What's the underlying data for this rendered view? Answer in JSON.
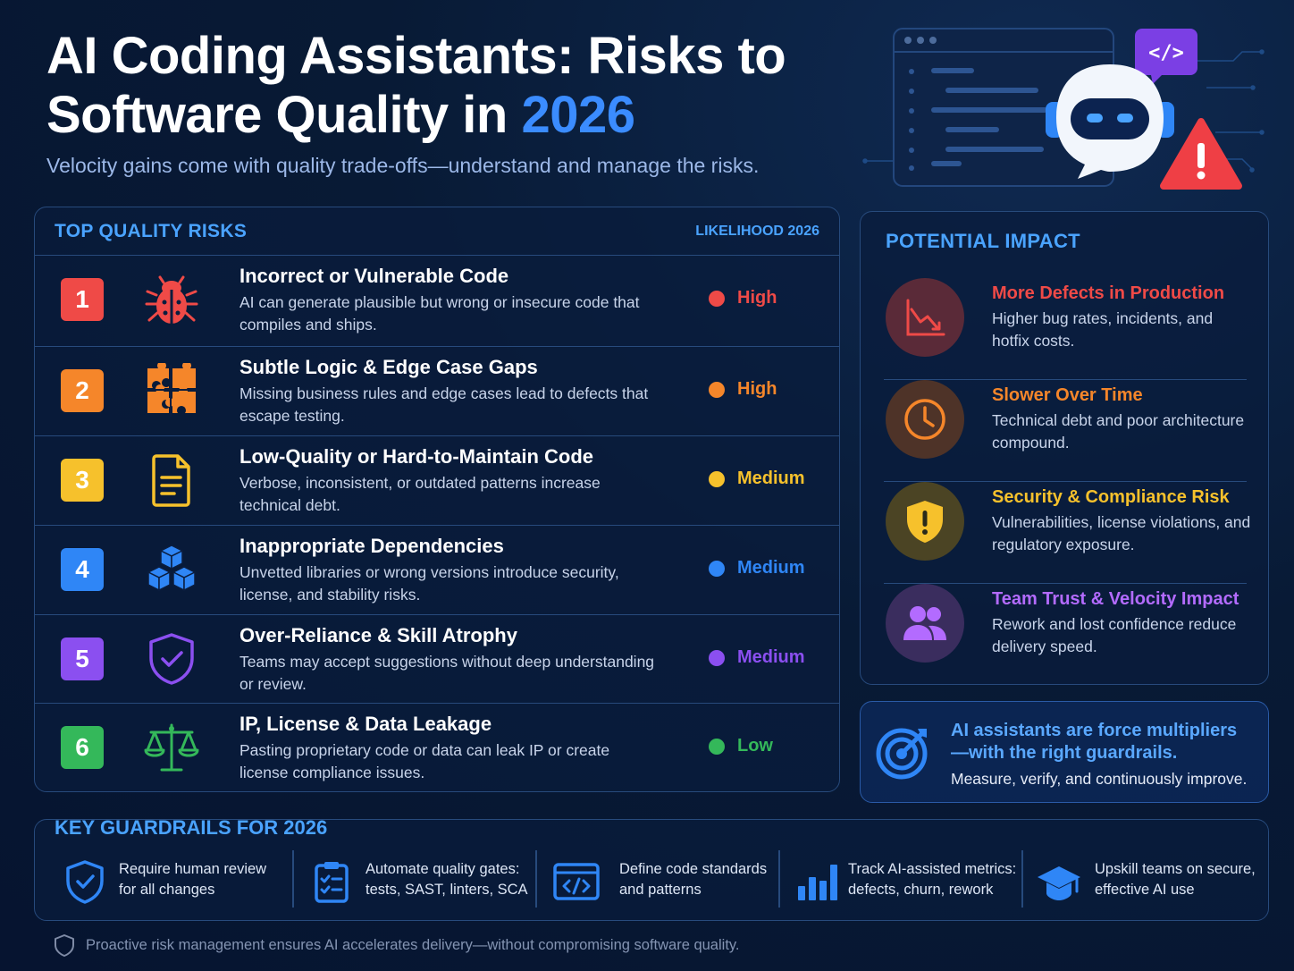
{
  "header": {
    "title_line1": "AI Coding Assistants: Risks to",
    "title_line2_prefix": "Software Quality in",
    "title_year": "2026",
    "subtitle": "Velocity gains come with quality trade-offs—understand and manage the risks."
  },
  "hero": {
    "code_tag": "</>"
  },
  "risks": {
    "title": "TOP QUALITY RISKS",
    "likelihood_label": "LIKELIHOOD 2026",
    "items": [
      {
        "num": "1",
        "title": "Incorrect or Vulnerable Code",
        "desc": "AI can generate plausible but wrong or insecure code that compiles and ships.",
        "level": "High",
        "color": "#ef4a47",
        "icon": "bug-icon"
      },
      {
        "num": "2",
        "title": "Subtle Logic & Edge Case Gaps",
        "desc": "Missing business rules and edge cases lead to defects that escape testing.",
        "level": "High",
        "color": "#f5862a",
        "icon": "puzzle-icon"
      },
      {
        "num": "3",
        "title": "Low-Quality or Hard-to-Maintain Code",
        "desc": "Verbose, inconsistent, or outdated patterns increase technical debt.",
        "level": "Medium",
        "color": "#f6c12c",
        "icon": "document-icon"
      },
      {
        "num": "4",
        "title": "Inappropriate Dependencies",
        "desc": "Unvetted libraries or wrong versions introduce security, license, and stability risks.",
        "level": "Medium",
        "color": "#2f86f6",
        "icon": "cubes-icon"
      },
      {
        "num": "5",
        "title": "Over-Reliance & Skill Atrophy",
        "desc": "Teams may accept suggestions without deep understanding or review.",
        "level": "Medium",
        "color": "#8b4ff0",
        "icon": "shield-check-icon"
      },
      {
        "num": "6",
        "title": "IP, License & Data Leakage",
        "desc": "Pasting proprietary code or data can leak IP or create license compliance issues.",
        "level": "Low",
        "color": "#34b85a",
        "icon": "scales-icon"
      }
    ]
  },
  "impact": {
    "title": "POTENTIAL IMPACT",
    "items": [
      {
        "title": "More Defects in Production",
        "desc": "Higher bug rates, incidents, and hotfix costs.",
        "color": "#ef4a47",
        "icon": "chart-down-icon"
      },
      {
        "title": "Slower Over Time",
        "desc": "Technical debt and poor architecture compound.",
        "color": "#f5862a",
        "icon": "clock-icon"
      },
      {
        "title": "Security & Compliance Risk",
        "desc": "Vulnerabilities, license violations, and regulatory exposure.",
        "color": "#f6c12c",
        "icon": "shield-alert-icon"
      },
      {
        "title": "Team Trust & Velocity Impact",
        "desc": "Rework and lost confidence reduce delivery speed.",
        "color": "#a260ff",
        "icon": "people-icon"
      }
    ]
  },
  "callout": {
    "title": "AI assistants are force multipliers—with the right guardrails.",
    "subtitle": "Measure, verify, and continuously improve."
  },
  "guardrails": {
    "title": "KEY GUARDRAILS FOR 2026",
    "items": [
      {
        "line1": "Require human review",
        "line2": "for all changes",
        "icon": "shield-check-icon"
      },
      {
        "line1": "Automate quality gates:",
        "line2": "tests, SAST, linters, SCA",
        "icon": "clipboard-icon"
      },
      {
        "line1": "Define code standards",
        "line2": "and patterns",
        "icon": "code-window-icon"
      },
      {
        "line1": "Track AI-assisted metrics:",
        "line2": "defects, churn, rework",
        "icon": "bar-chart-icon"
      },
      {
        "line1": "Upskill teams on secure,",
        "line2": "effective AI use",
        "icon": "graduation-cap-icon"
      }
    ]
  },
  "footer": {
    "text": "Proactive risk management ensures AI accelerates delivery—without compromising software quality."
  }
}
